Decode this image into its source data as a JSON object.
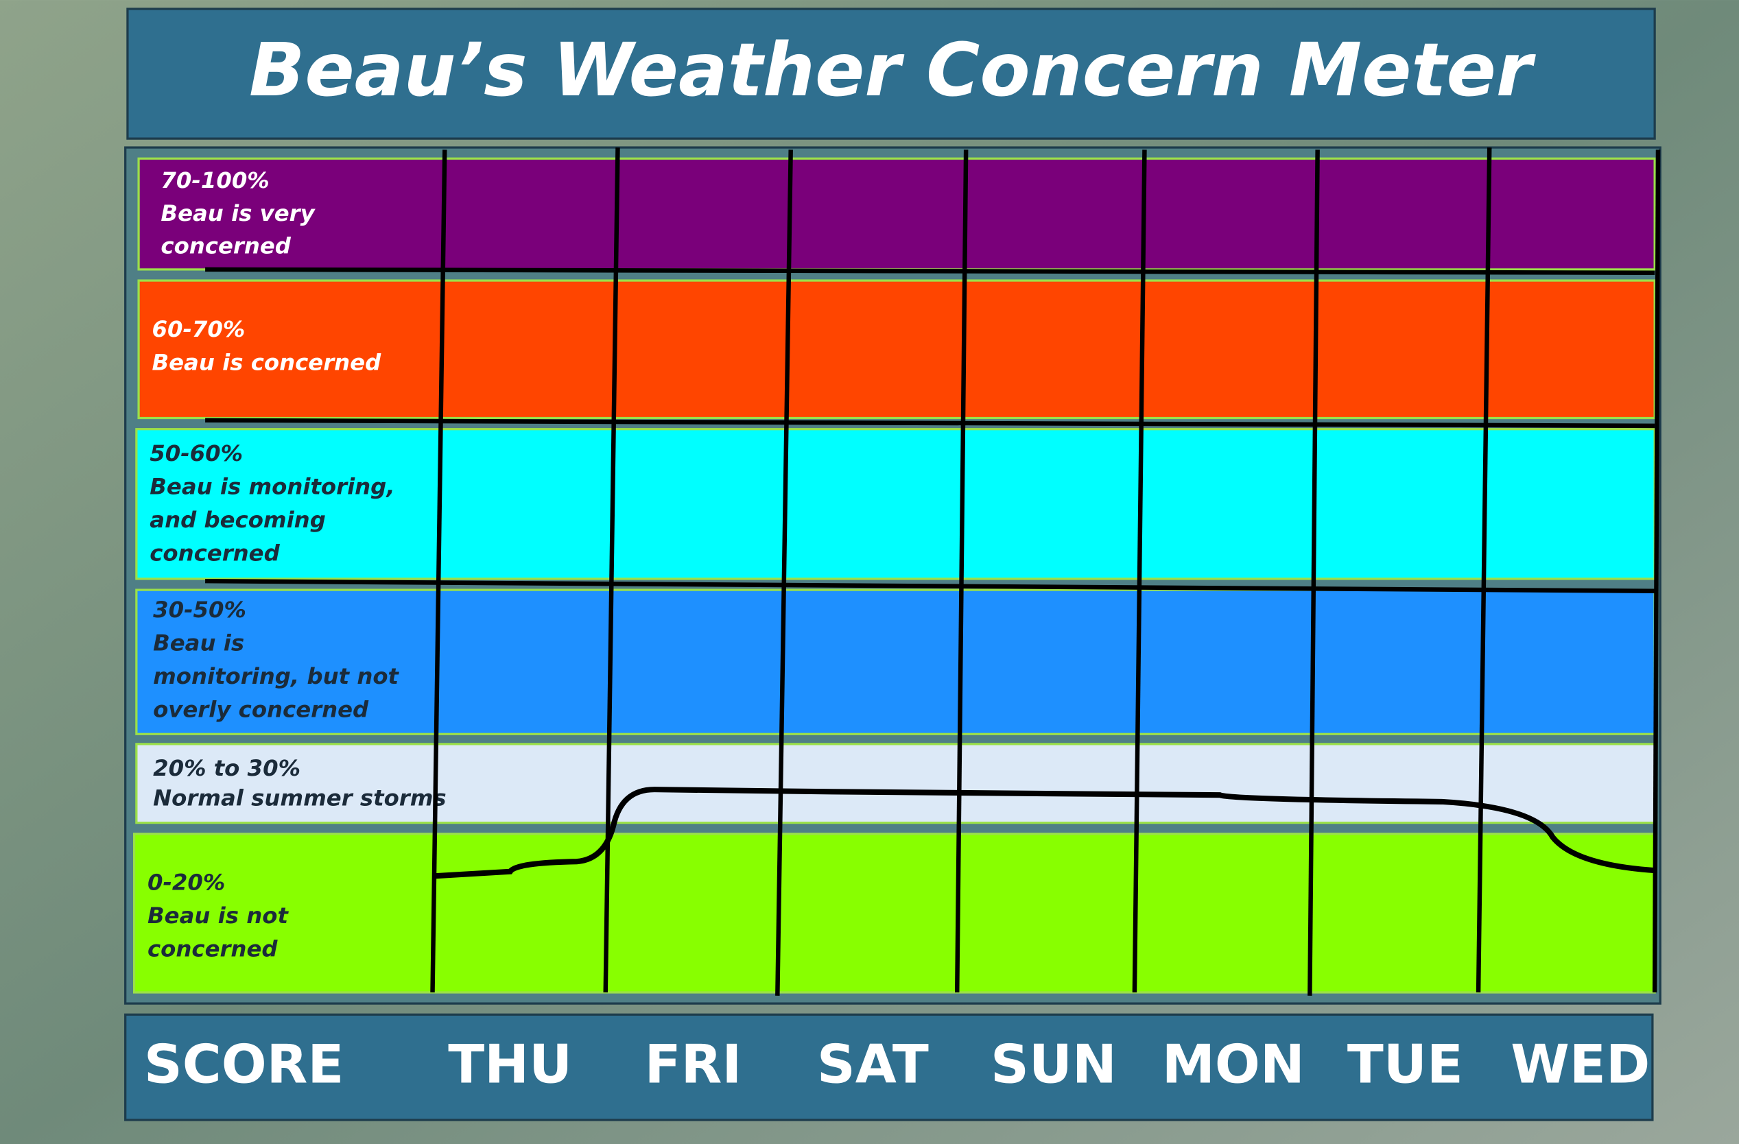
{
  "header": {
    "title": "Beau’s Weather Concern Meter"
  },
  "bands": [
    {
      "range": "70-100%",
      "lines": [
        "Beau is very",
        "concerned"
      ]
    },
    {
      "range": "60-70%",
      "lines": [
        "Beau is concerned"
      ]
    },
    {
      "range": "50-60%",
      "lines": [
        "Beau is monitoring,",
        "and becoming",
        "concerned"
      ]
    },
    {
      "range": "30-50%",
      "lines": [
        "Beau is",
        "monitoring, but  not",
        "overly  concerned"
      ]
    },
    {
      "range": "20% to 30%",
      "lines": [
        "Normal summer storms"
      ]
    },
    {
      "range": "0-20%",
      "lines": [
        "Beau is not",
        "concerned"
      ]
    }
  ],
  "footer": {
    "labels": [
      "SCORE",
      "THU",
      "FRI",
      "SAT",
      "SUN",
      "MON",
      "TUE",
      "WED"
    ]
  }
}
